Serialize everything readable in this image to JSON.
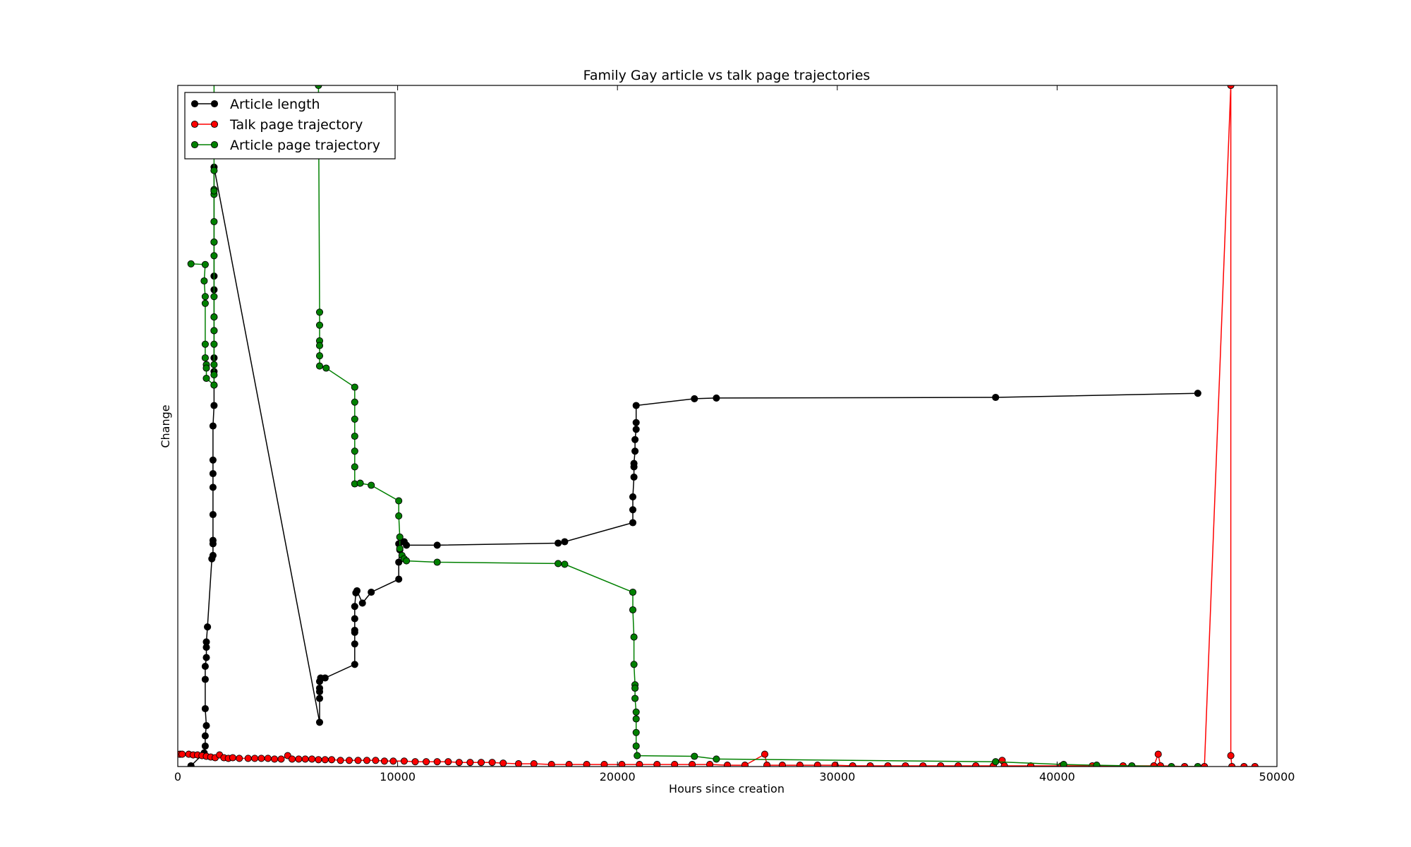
{
  "chart_data": {
    "type": "line",
    "title": "Family Gay article vs talk page trajectories",
    "xlabel": "Hours since creation",
    "ylabel": "Change",
    "xlim": [
      0,
      50000
    ],
    "ylim": [
      0,
      1
    ],
    "x_ticks": [
      0,
      10000,
      20000,
      30000,
      40000,
      50000
    ],
    "x_tick_labels": [
      "0",
      "10000",
      "20000",
      "30000",
      "40000",
      "50000"
    ],
    "y_ticks_shown": false,
    "grid": false,
    "legend_position": "top-left",
    "series": [
      {
        "name": "Article length",
        "color": "#000000",
        "points": [
          [
            600,
            0.001
          ],
          [
            1200,
            0.02
          ],
          [
            1250,
            0.03
          ],
          [
            1250,
            0.045
          ],
          [
            1300,
            0.06
          ],
          [
            1250,
            0.085
          ],
          [
            1250,
            0.128
          ],
          [
            1250,
            0.147
          ],
          [
            1300,
            0.16
          ],
          [
            1300,
            0.175
          ],
          [
            1300,
            0.183
          ],
          [
            1350,
            0.205
          ],
          [
            1550,
            0.305
          ],
          [
            1600,
            0.31
          ],
          [
            1600,
            0.327
          ],
          [
            1600,
            0.332
          ],
          [
            1600,
            0.37
          ],
          [
            1600,
            0.41
          ],
          [
            1600,
            0.43
          ],
          [
            1600,
            0.45
          ],
          [
            1600,
            0.5
          ],
          [
            1650,
            0.53
          ],
          [
            1650,
            0.56
          ],
          [
            1650,
            0.58
          ],
          [
            1650,
            0.6
          ],
          [
            1650,
            0.64
          ],
          [
            1650,
            0.66
          ],
          [
            1650,
            0.7
          ],
          [
            1650,
            0.72
          ],
          [
            1650,
            0.88
          ],
          [
            6450,
            0.065
          ],
          [
            6450,
            0.1
          ],
          [
            6450,
            0.11
          ],
          [
            6450,
            0.115
          ],
          [
            6450,
            0.125
          ],
          [
            6500,
            0.13
          ],
          [
            6700,
            0.13
          ],
          [
            8050,
            0.15
          ],
          [
            8050,
            0.18
          ],
          [
            8050,
            0.197
          ],
          [
            8050,
            0.2
          ],
          [
            8050,
            0.217
          ],
          [
            8050,
            0.235
          ],
          [
            8100,
            0.255
          ],
          [
            8150,
            0.258
          ],
          [
            8400,
            0.24
          ],
          [
            8800,
            0.256
          ],
          [
            10050,
            0.275
          ],
          [
            10050,
            0.3
          ],
          [
            10100,
            0.318
          ],
          [
            10050,
            0.327
          ],
          [
            10200,
            0.33
          ],
          [
            10300,
            0.33
          ],
          [
            10400,
            0.325
          ],
          [
            11800,
            0.325
          ],
          [
            17300,
            0.328
          ],
          [
            17600,
            0.33
          ],
          [
            20700,
            0.358
          ],
          [
            20700,
            0.377
          ],
          [
            20700,
            0.396
          ],
          [
            20750,
            0.425
          ],
          [
            20750,
            0.44
          ],
          [
            20750,
            0.445
          ],
          [
            20800,
            0.463
          ],
          [
            20800,
            0.48
          ],
          [
            20850,
            0.495
          ],
          [
            20850,
            0.505
          ],
          [
            20850,
            0.53
          ],
          [
            23500,
            0.54
          ],
          [
            24500,
            0.541
          ],
          [
            37200,
            0.542
          ],
          [
            46400,
            0.548
          ]
        ]
      },
      {
        "name": "Talk page trajectory",
        "color": "#ff0000",
        "points": [
          [
            100,
            0.018
          ],
          [
            200,
            0.018
          ],
          [
            500,
            0.018
          ],
          [
            700,
            0.017
          ],
          [
            900,
            0.017
          ],
          [
            1100,
            0.016
          ],
          [
            1300,
            0.015
          ],
          [
            1500,
            0.014
          ],
          [
            1700,
            0.013
          ],
          [
            1900,
            0.017
          ],
          [
            2100,
            0.013
          ],
          [
            2300,
            0.012
          ],
          [
            2500,
            0.013
          ],
          [
            2800,
            0.012
          ],
          [
            3200,
            0.012
          ],
          [
            3500,
            0.012
          ],
          [
            3800,
            0.012
          ],
          [
            4100,
            0.012
          ],
          [
            4400,
            0.011
          ],
          [
            4700,
            0.011
          ],
          [
            5000,
            0.016
          ],
          [
            5200,
            0.011
          ],
          [
            5500,
            0.011
          ],
          [
            5800,
            0.011
          ],
          [
            6100,
            0.011
          ],
          [
            6400,
            0.01
          ],
          [
            6700,
            0.01
          ],
          [
            7000,
            0.01
          ],
          [
            7400,
            0.009
          ],
          [
            7800,
            0.009
          ],
          [
            8200,
            0.009
          ],
          [
            8600,
            0.009
          ],
          [
            9000,
            0.009
          ],
          [
            9400,
            0.008
          ],
          [
            9800,
            0.008
          ],
          [
            10300,
            0.008
          ],
          [
            10800,
            0.007
          ],
          [
            11300,
            0.007
          ],
          [
            11800,
            0.007
          ],
          [
            12300,
            0.007
          ],
          [
            12800,
            0.006
          ],
          [
            13300,
            0.006
          ],
          [
            13800,
            0.006
          ],
          [
            14300,
            0.006
          ],
          [
            14800,
            0.005
          ],
          [
            15500,
            0.004
          ],
          [
            16200,
            0.004
          ],
          [
            17000,
            0.003
          ],
          [
            17800,
            0.003
          ],
          [
            18600,
            0.003
          ],
          [
            19400,
            0.003
          ],
          [
            20200,
            0.003
          ],
          [
            21000,
            0.003
          ],
          [
            21800,
            0.003
          ],
          [
            22600,
            0.003
          ],
          [
            23400,
            0.003
          ],
          [
            24200,
            0.003
          ],
          [
            25000,
            0.002
          ],
          [
            25800,
            0.002
          ],
          [
            26700,
            0.018
          ],
          [
            26800,
            0.002
          ],
          [
            27500,
            0.002
          ],
          [
            28300,
            0.002
          ],
          [
            29100,
            0.002
          ],
          [
            29900,
            0.002
          ],
          [
            30700,
            0.001
          ],
          [
            31500,
            0.001
          ],
          [
            32300,
            0.001
          ],
          [
            33100,
            0.001
          ],
          [
            33900,
            0.001
          ],
          [
            34700,
            0.001
          ],
          [
            35500,
            0.001
          ],
          [
            36300,
            0.001
          ],
          [
            37100,
            0.001
          ],
          [
            37500,
            0.009
          ],
          [
            37600,
            0.001
          ],
          [
            38800,
            0.001
          ],
          [
            40200,
            0.001
          ],
          [
            41600,
            0.001
          ],
          [
            43000,
            0.001
          ],
          [
            44400,
            0.001
          ],
          [
            44600,
            0.018
          ],
          [
            44700,
            0.001
          ],
          [
            45800,
            0.0
          ],
          [
            46700,
            0.0
          ],
          [
            47900,
            1.0
          ],
          [
            47900,
            0.016
          ],
          [
            47950,
            0.0
          ],
          [
            48500,
            0.0
          ],
          [
            49000,
            0.0
          ]
        ]
      },
      {
        "name": "Article page trajectory",
        "color": "#008000",
        "points": [
          [
            600,
            0.738
          ],
          [
            1250,
            0.737
          ],
          [
            1200,
            0.713
          ],
          [
            1250,
            0.69
          ],
          [
            1250,
            0.68
          ],
          [
            1250,
            0.62
          ],
          [
            1250,
            0.6
          ],
          [
            1300,
            0.59
          ],
          [
            1300,
            0.585
          ],
          [
            1300,
            0.57
          ],
          [
            1650,
            0.56
          ],
          [
            1650,
            0.575
          ],
          [
            1650,
            0.59
          ],
          [
            1650,
            0.62
          ],
          [
            1650,
            0.64
          ],
          [
            1650,
            0.66
          ],
          [
            1650,
            0.69
          ],
          [
            1650,
            0.75
          ],
          [
            1650,
            0.77
          ],
          [
            1650,
            0.77
          ],
          [
            1650,
            0.8
          ],
          [
            1650,
            0.84
          ],
          [
            1650,
            0.847
          ],
          [
            1650,
            0.845
          ],
          [
            1650,
            0.875
          ],
          [
            1650,
            0.93
          ],
          [
            1650,
            1.01
          ],
          [
            1650,
            1.03
          ],
          [
            6400,
            1.0
          ],
          [
            6450,
            0.667
          ],
          [
            6450,
            0.648
          ],
          [
            6450,
            0.625
          ],
          [
            6450,
            0.618
          ],
          [
            6450,
            0.603
          ],
          [
            6450,
            0.588
          ],
          [
            6750,
            0.585
          ],
          [
            8050,
            0.557
          ],
          [
            8050,
            0.535
          ],
          [
            8050,
            0.51
          ],
          [
            8050,
            0.485
          ],
          [
            8050,
            0.463
          ],
          [
            8050,
            0.44
          ],
          [
            8050,
            0.415
          ],
          [
            8300,
            0.416
          ],
          [
            8800,
            0.413
          ],
          [
            10050,
            0.39
          ],
          [
            10050,
            0.368
          ],
          [
            10100,
            0.337
          ],
          [
            10100,
            0.32
          ],
          [
            10200,
            0.31
          ],
          [
            10300,
            0.305
          ],
          [
            10400,
            0.302
          ],
          [
            11800,
            0.3
          ],
          [
            17300,
            0.298
          ],
          [
            17600,
            0.297
          ],
          [
            20700,
            0.256
          ],
          [
            20700,
            0.23
          ],
          [
            20750,
            0.19
          ],
          [
            20750,
            0.15
          ],
          [
            20800,
            0.12
          ],
          [
            20800,
            0.115
          ],
          [
            20800,
            0.1
          ],
          [
            20850,
            0.08
          ],
          [
            20850,
            0.07
          ],
          [
            20850,
            0.05
          ],
          [
            20850,
            0.03
          ],
          [
            20900,
            0.016
          ],
          [
            23500,
            0.015
          ],
          [
            24500,
            0.011
          ],
          [
            37200,
            0.007
          ],
          [
            40300,
            0.003
          ],
          [
            41800,
            0.002
          ],
          [
            43400,
            0.001
          ],
          [
            45200,
            0.0
          ],
          [
            46400,
            0.0
          ]
        ]
      }
    ]
  }
}
